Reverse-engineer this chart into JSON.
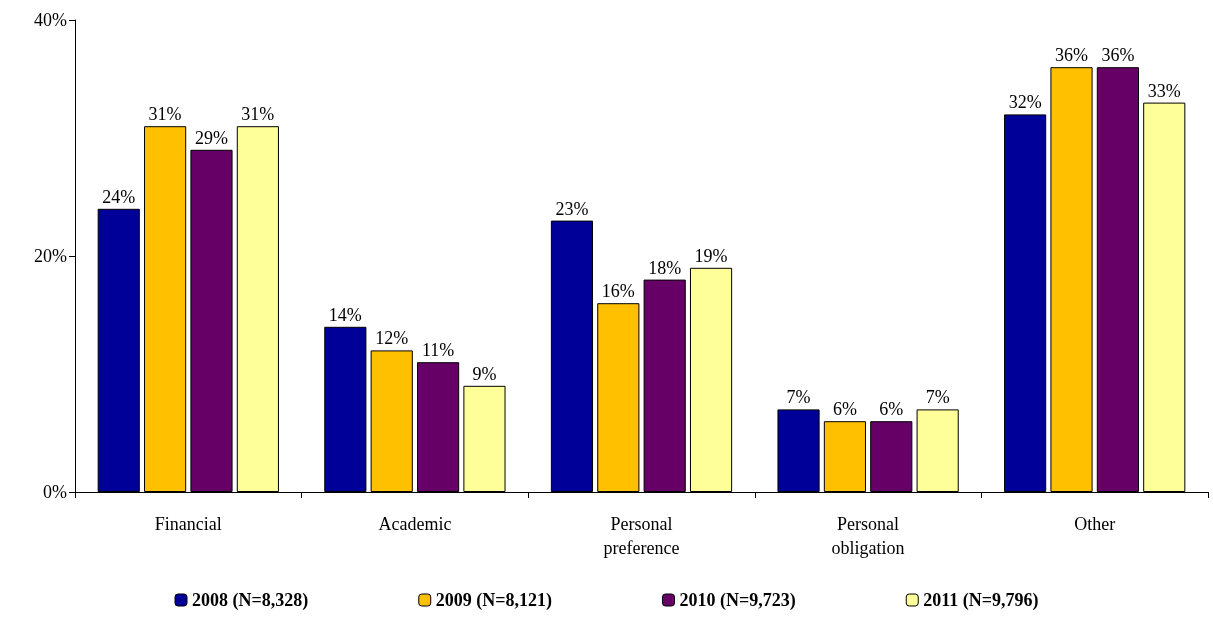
{
  "chart_data": {
    "type": "bar",
    "categories": [
      "Financial",
      "Academic",
      "Personal preference",
      "Personal obligation",
      "Other"
    ],
    "series": [
      {
        "name": "2008 (N=8,328)",
        "color": "#000099",
        "values": [
          24,
          14,
          23,
          7,
          32
        ],
        "value_labels": [
          "24%",
          "14%",
          "23%",
          "7%",
          "32%"
        ]
      },
      {
        "name": "2009 (N=8,121)",
        "color": "#ffc000",
        "values": [
          31,
          12,
          16,
          6,
          36
        ],
        "value_labels": [
          "31%",
          "12%",
          "16%",
          "6%",
          "36%"
        ]
      },
      {
        "name": "2010 (N=9,723)",
        "color": "#660066",
        "values": [
          29,
          11,
          18,
          6,
          36
        ],
        "value_labels": [
          "29%",
          "11%",
          "18%",
          "6%",
          "36%"
        ]
      },
      {
        "name": "2011 (N=9,796)",
        "color": "#ffff99",
        "values": [
          31,
          9,
          19,
          7,
          33
        ],
        "value_labels": [
          "31%",
          "9%",
          "19%",
          "7%",
          "33%"
        ]
      }
    ],
    "ylim": [
      0,
      40
    ],
    "yticks": [
      {
        "value": 0,
        "label": "0%"
      },
      {
        "value": 20,
        "label": "20%"
      },
      {
        "value": 40,
        "label": "40%"
      }
    ],
    "grid": false,
    "legend": "bottom"
  }
}
